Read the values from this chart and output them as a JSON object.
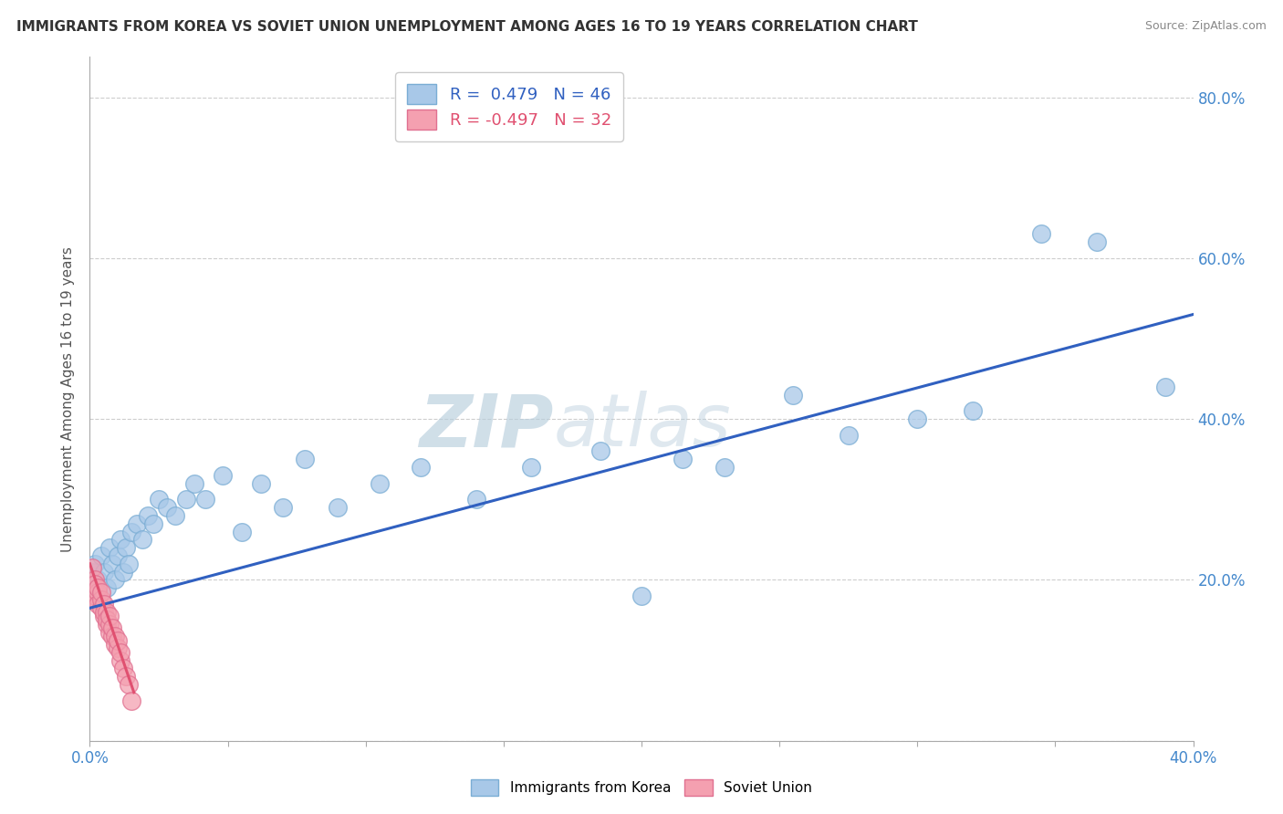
{
  "title": "IMMIGRANTS FROM KOREA VS SOVIET UNION UNEMPLOYMENT AMONG AGES 16 TO 19 YEARS CORRELATION CHART",
  "source": "Source: ZipAtlas.com",
  "ylabel": "Unemployment Among Ages 16 to 19 years",
  "xlim": [
    0.0,
    0.4
  ],
  "ylim": [
    0.0,
    0.85
  ],
  "korea_color": "#a8c8e8",
  "korea_edge_color": "#7aadd4",
  "soviet_color": "#f4a0b0",
  "soviet_edge_color": "#e07090",
  "korea_line_color": "#3060c0",
  "soviet_line_color": "#e05070",
  "korea_R": 0.479,
  "korea_N": 46,
  "soviet_R": -0.497,
  "soviet_N": 32,
  "background_color": "#ffffff",
  "korea_x": [
    0.001,
    0.002,
    0.003,
    0.004,
    0.005,
    0.006,
    0.007,
    0.008,
    0.009,
    0.01,
    0.011,
    0.012,
    0.013,
    0.014,
    0.015,
    0.017,
    0.019,
    0.021,
    0.023,
    0.025,
    0.028,
    0.031,
    0.035,
    0.038,
    0.042,
    0.048,
    0.055,
    0.062,
    0.07,
    0.078,
    0.09,
    0.105,
    0.12,
    0.14,
    0.16,
    0.185,
    0.2,
    0.215,
    0.23,
    0.255,
    0.275,
    0.3,
    0.32,
    0.345,
    0.365,
    0.39
  ],
  "korea_y": [
    0.21,
    0.22,
    0.2,
    0.23,
    0.21,
    0.19,
    0.24,
    0.22,
    0.2,
    0.23,
    0.25,
    0.21,
    0.24,
    0.22,
    0.26,
    0.27,
    0.25,
    0.28,
    0.27,
    0.3,
    0.29,
    0.28,
    0.3,
    0.32,
    0.3,
    0.33,
    0.26,
    0.32,
    0.29,
    0.35,
    0.29,
    0.32,
    0.34,
    0.3,
    0.34,
    0.36,
    0.18,
    0.35,
    0.34,
    0.43,
    0.38,
    0.4,
    0.41,
    0.63,
    0.62,
    0.44
  ],
  "soviet_x": [
    0.001,
    0.001,
    0.002,
    0.002,
    0.002,
    0.003,
    0.003,
    0.003,
    0.004,
    0.004,
    0.004,
    0.005,
    0.005,
    0.005,
    0.006,
    0.006,
    0.006,
    0.007,
    0.007,
    0.007,
    0.008,
    0.008,
    0.009,
    0.009,
    0.01,
    0.01,
    0.011,
    0.011,
    0.012,
    0.013,
    0.014,
    0.015
  ],
  "soviet_y": [
    0.215,
    0.175,
    0.2,
    0.18,
    0.195,
    0.185,
    0.17,
    0.19,
    0.165,
    0.175,
    0.185,
    0.155,
    0.17,
    0.16,
    0.145,
    0.16,
    0.15,
    0.135,
    0.145,
    0.155,
    0.13,
    0.14,
    0.12,
    0.13,
    0.115,
    0.125,
    0.1,
    0.11,
    0.09,
    0.08,
    0.07,
    0.05
  ],
  "korea_line_x": [
    0.0,
    0.4
  ],
  "korea_line_y": [
    0.165,
    0.53
  ],
  "soviet_line_x": [
    0.0,
    0.016
  ],
  "soviet_line_y": [
    0.22,
    0.06
  ]
}
